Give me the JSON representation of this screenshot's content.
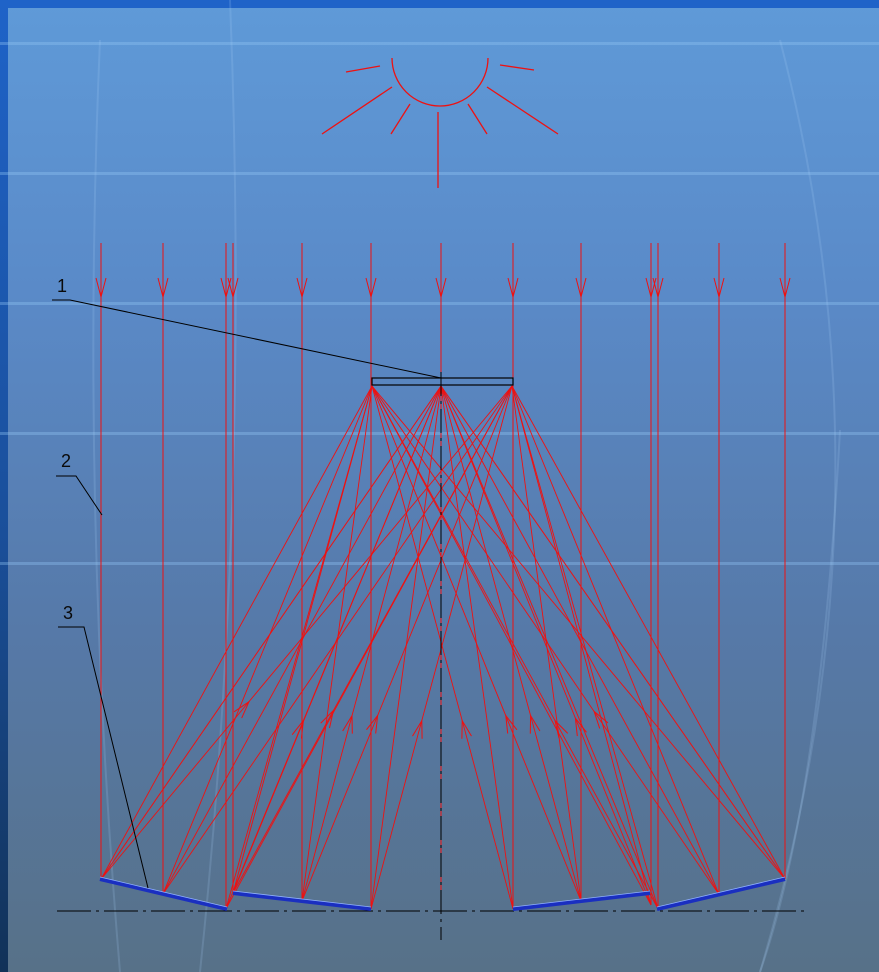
{
  "labels": {
    "absorber": "1",
    "incident_ray": "2",
    "mirror": "3"
  },
  "colors": {
    "ray": "#ee1111",
    "mirror": "#1a2fc0",
    "line": "#000000",
    "sun": "#ee1111"
  },
  "icons": {
    "sun": "sun-icon"
  }
}
